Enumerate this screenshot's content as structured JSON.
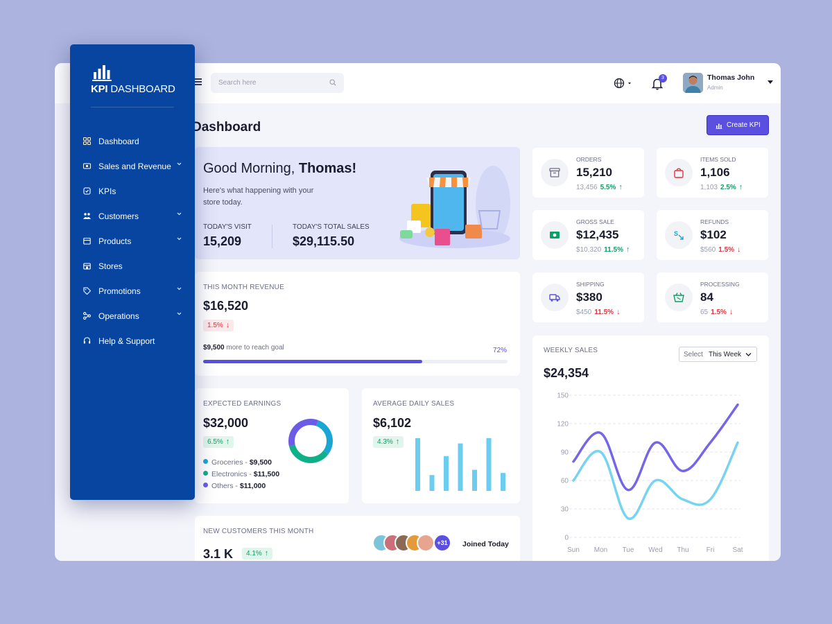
{
  "brand": {
    "logo_text_bold": "KPI",
    "logo_text_rest": " DASHBOARD"
  },
  "sidebar": {
    "items": [
      {
        "label": "Dashboard",
        "icon": "grid-icon",
        "has_submenu": false
      },
      {
        "label": "Sales and Revenue",
        "icon": "money-icon",
        "has_submenu": true
      },
      {
        "label": "KPIs",
        "icon": "target-icon",
        "has_submenu": false
      },
      {
        "label": "Customers",
        "icon": "users-icon",
        "has_submenu": true
      },
      {
        "label": "Products",
        "icon": "box-icon",
        "has_submenu": true
      },
      {
        "label": "Stores",
        "icon": "store-icon",
        "has_submenu": false
      },
      {
        "label": "Promotions",
        "icon": "tag-icon",
        "has_submenu": true
      },
      {
        "label": "Operations",
        "icon": "nodes-icon",
        "has_submenu": true
      },
      {
        "label": "Help & Support",
        "icon": "headset-icon",
        "has_submenu": false
      }
    ]
  },
  "header": {
    "search_placeholder": "Search here",
    "notification_count": "3",
    "user": {
      "name": "Thomas John",
      "role": "Admin"
    }
  },
  "page": {
    "title": "Dashboard",
    "create_button": "Create KPI"
  },
  "welcome": {
    "greeting": "Good Morning, ",
    "name": "Thomas!",
    "subtitle": "Here's what happening with your store today.",
    "visit_label": "TODAY'S VISIT",
    "visit_value": "15,209",
    "sales_label": "TODAY'S TOTAL SALES",
    "sales_value": "$29,115.50"
  },
  "revenue": {
    "label": "THIS MONTH REVENUE",
    "value": "$16,520",
    "change": "1.5%",
    "goal_amount": "$9,500",
    "goal_text": " more to reach goal",
    "progress_label": "72%",
    "progress": 0.72
  },
  "earnings": {
    "label": "EXPECTED EARNINGS",
    "value": "$32,000",
    "change": "6.5%",
    "items": [
      {
        "name": "Groceries - ",
        "value": "$9,500",
        "color": "#1aa6d4",
        "amount": 9500
      },
      {
        "name": "Electronics - ",
        "value": "$11,500",
        "color": "#0eb08a",
        "amount": 11500
      },
      {
        "name": "Others - ",
        "value": "$11,000",
        "color": "#6b5be6",
        "amount": 11000
      }
    ]
  },
  "daily": {
    "label": "AVERAGE DAILY SALES",
    "value": "$6,102",
    "change": "4.3%",
    "bars": [
      1.0,
      0.3,
      0.66,
      0.9,
      0.4,
      1.0,
      0.34
    ],
    "bar_color": "#6dcdf0"
  },
  "customers": {
    "label": "NEW CUSTOMERS THIS MONTH",
    "value": "3.1 K",
    "change": "4.1%",
    "more_count": "+31",
    "joined": "Joined Today"
  },
  "stats": [
    {
      "label": "ORDERS",
      "value": "15,210",
      "prev": "13,456",
      "pct": "5.5%",
      "trend": "up",
      "icon": "archive-icon",
      "icon_color": "#6b6e86"
    },
    {
      "label": "ITEMS SOLD",
      "value": "1,106",
      "prev": "1,103",
      "pct": "2.5%",
      "trend": "up",
      "icon": "bag-icon",
      "icon_color": "#e0313d"
    },
    {
      "label": "GROSS SALE",
      "value": "$12,435",
      "prev": "$10,320",
      "pct": "11.5%",
      "trend": "up",
      "icon": "cash-icon",
      "icon_color": "#0c9f67"
    },
    {
      "label": "REFUNDS",
      "value": "$102",
      "prev": "$560",
      "pct": "1.5%",
      "trend": "down",
      "icon": "refund-icon",
      "icon_color": "#1aa6d4"
    },
    {
      "label": "SHIPPING",
      "value": "$380",
      "prev": "$450",
      "pct": "11.5%",
      "trend": "down",
      "icon": "truck-icon",
      "icon_color": "#5b4fe0"
    },
    {
      "label": "PROCESSING",
      "value": "84",
      "prev": "65",
      "pct": "1.5%",
      "trend": "down",
      "icon": "basket-icon",
      "icon_color": "#0c9f67"
    }
  ],
  "weekly": {
    "label": "WEEKLY SALES",
    "value": "$24,354",
    "select_label": "Select",
    "select_value": "This Week"
  },
  "chart_data": {
    "type": "line",
    "categories": [
      "Sun",
      "Mon",
      "Tue",
      "Wed",
      "Thu",
      "Fri",
      "Sat"
    ],
    "ylim": [
      0,
      150
    ],
    "yticks": [
      0,
      30,
      60,
      90,
      120,
      150
    ],
    "grid": true,
    "series": [
      {
        "color": "#7466e6",
        "values": [
          80,
          110,
          50,
          100,
          70,
          100,
          140
        ]
      },
      {
        "color": "#77d3f0",
        "values": [
          60,
          90,
          20,
          60,
          40,
          40,
          100
        ]
      }
    ]
  },
  "colors": {
    "accent": "#5b4fe0",
    "sidebar": "#0845a0",
    "background": "#abb3de"
  }
}
